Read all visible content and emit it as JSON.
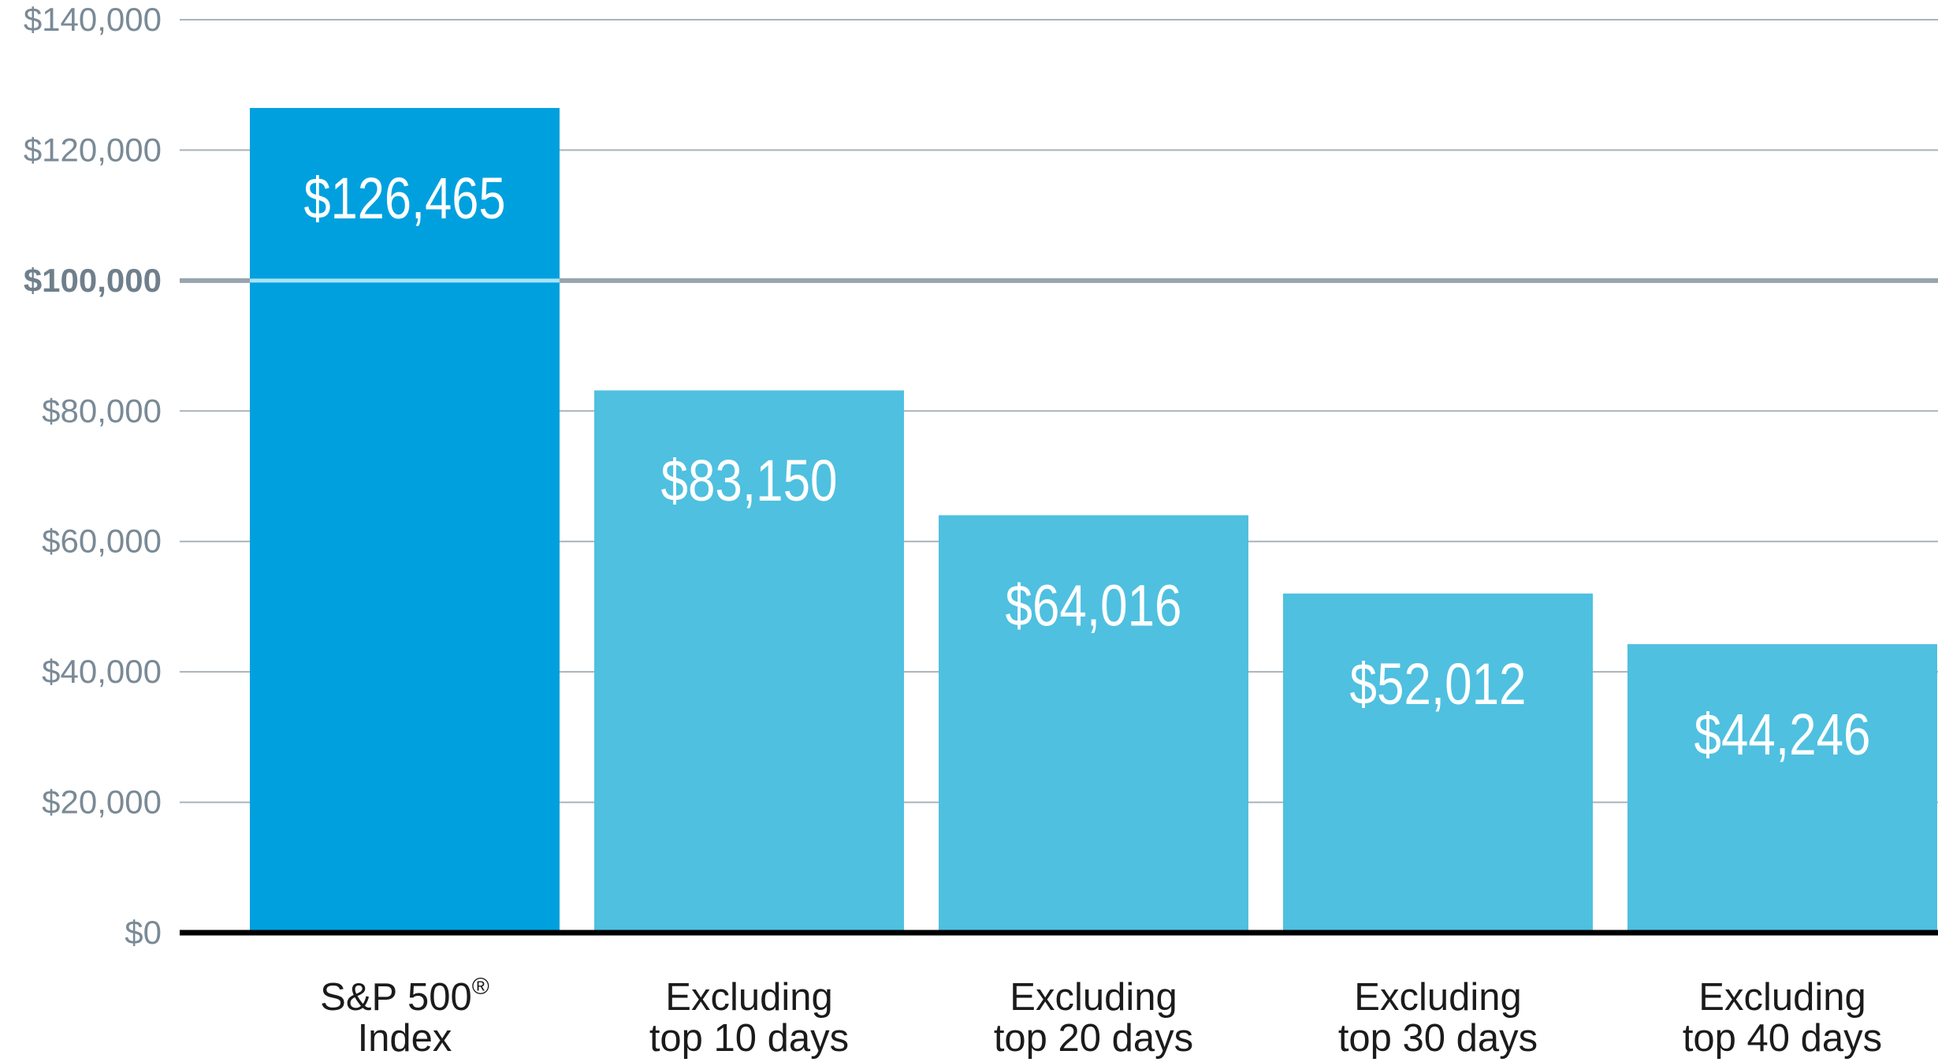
{
  "chart_data": {
    "type": "bar",
    "categories": [
      [
        "S&P 500",
        "Index"
      ],
      [
        "Excluding",
        "top 10 days"
      ],
      [
        "Excluding",
        "top 20 days"
      ],
      [
        "Excluding",
        "top 30 days"
      ],
      [
        "Excluding",
        "top 40 days"
      ]
    ],
    "category_superscripts": [
      "®",
      "",
      "",
      "",
      ""
    ],
    "values": [
      126465,
      83150,
      64016,
      52012,
      44246
    ],
    "value_labels": [
      "$126,465",
      "$83,150",
      "$64,016",
      "$52,012",
      "$44,246"
    ],
    "ylim": [
      0,
      140000
    ],
    "yticks": [
      0,
      20000,
      40000,
      60000,
      80000,
      100000,
      120000,
      140000
    ],
    "ytick_labels": [
      "$0",
      "$20,000",
      "$40,000",
      "$60,000",
      "$80,000",
      "$100,000",
      "$120,000",
      "$140,000"
    ],
    "reference_line": 100000,
    "grid": true,
    "colors": {
      "highlight_bar": "#00a0df",
      "bar": "#4fc0e0",
      "reference_line": "#97a4ae",
      "reference_overlay": "#a8e4f6",
      "grid": "#a9b3ba",
      "axis": "#000000"
    },
    "title": "",
    "xlabel": "",
    "ylabel": ""
  }
}
